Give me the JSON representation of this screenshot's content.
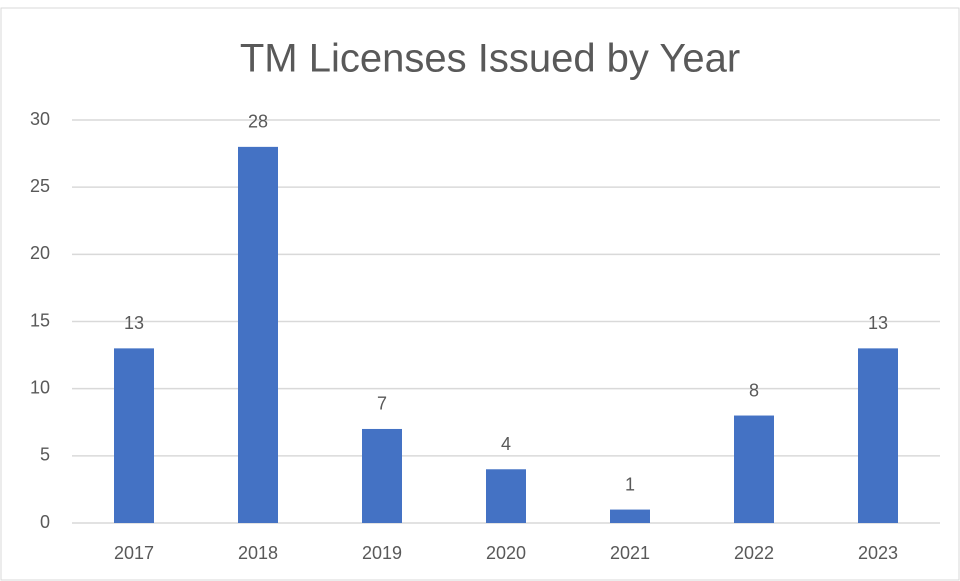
{
  "chart_data": {
    "type": "bar",
    "title": "TM Licenses Issued by Year",
    "categories": [
      "2017",
      "2018",
      "2019",
      "2020",
      "2021",
      "2022",
      "2023"
    ],
    "values": [
      13,
      28,
      7,
      4,
      1,
      8,
      13
    ],
    "color": "#4472c4",
    "ylim": [
      0,
      30
    ],
    "yticks": [
      0,
      5,
      10,
      15,
      20,
      25,
      30
    ],
    "grid": true
  }
}
